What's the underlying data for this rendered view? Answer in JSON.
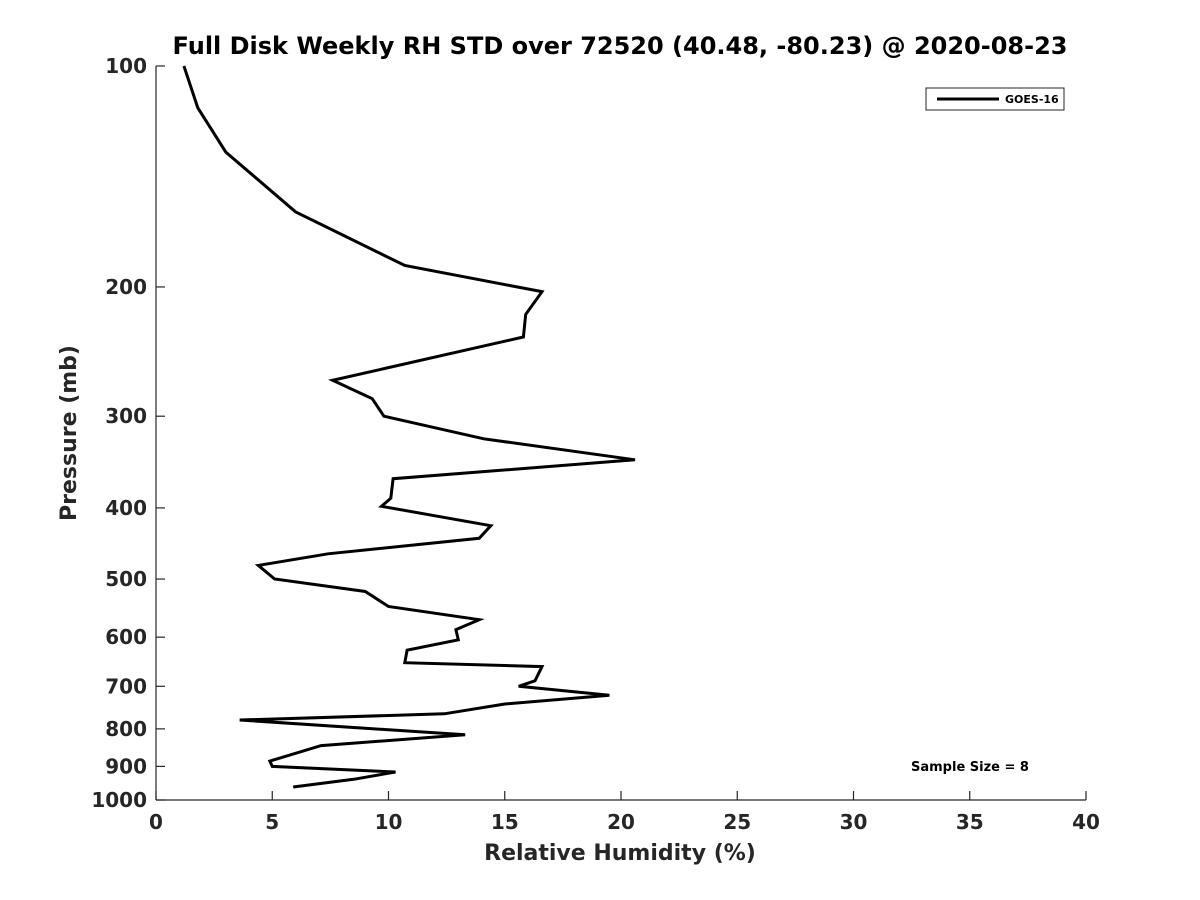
{
  "chart_data": {
    "type": "line",
    "title": "Full Disk Weekly RH STD over 72520 (40.48, -80.23) @ 2020-08-23",
    "xlabel": "Relative Humidity (%)",
    "ylabel": "Pressure (mb)",
    "xlim": [
      0,
      40
    ],
    "ylim": [
      100,
      1000
    ],
    "yscale": "log",
    "y_reversed": true,
    "grid": false,
    "xticks": [
      0,
      5,
      10,
      15,
      20,
      25,
      30,
      35,
      40
    ],
    "xtick_labels": [
      "0",
      "5",
      "10",
      "15",
      "20",
      "25",
      "30",
      "35",
      "40"
    ],
    "yticks": [
      100,
      200,
      300,
      400,
      500,
      600,
      700,
      800,
      900,
      1000
    ],
    "ytick_labels": [
      "100",
      "200",
      "300",
      "400",
      "500",
      "600",
      "700",
      "800",
      "900",
      "1000"
    ],
    "legend": {
      "entries": [
        "GOES-16"
      ],
      "position": "top-right"
    },
    "annotation": "Sample Size = 8",
    "series": [
      {
        "name": "GOES-16",
        "color": "#000000",
        "x": [
          1.2,
          1.8,
          3.0,
          6.0,
          10.7,
          16.6,
          15.9,
          15.8,
          7.6,
          9.3,
          9.8,
          14.1,
          20.6,
          10.2,
          10.1,
          9.7,
          14.4,
          13.9,
          7.4,
          4.4,
          5.1,
          9.0,
          10.0,
          13.9,
          12.9,
          13.0,
          10.8,
          10.7,
          16.6,
          16.3,
          15.6,
          19.5,
          15.0,
          12.4,
          3.6,
          13.3,
          7.1,
          4.9,
          5.0,
          10.3,
          8.5,
          5.9
        ],
        "y": [
          100,
          114,
          131,
          158,
          187,
          203,
          218,
          234,
          268,
          284,
          300,
          322,
          344,
          365,
          388,
          398,
          423,
          440,
          462,
          479,
          500,
          520,
          545,
          568,
          586,
          605,
          625,
          650,
          658,
          688,
          700,
          720,
          740,
          763,
          778,
          815,
          843,
          885,
          900,
          916,
          937,
          960
        ]
      }
    ]
  }
}
